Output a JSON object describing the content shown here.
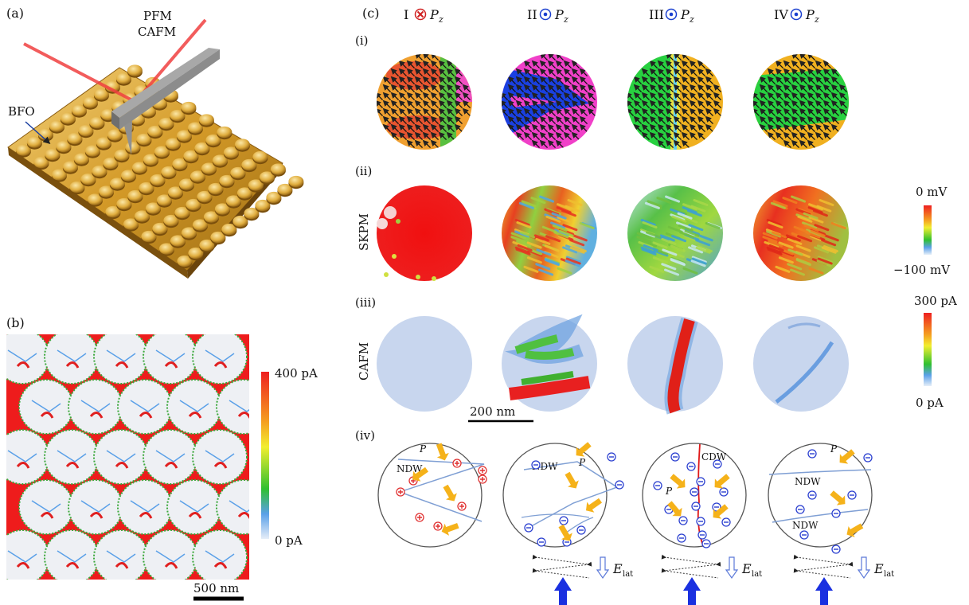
{
  "panels": {
    "a": "(a)",
    "b": "(b)",
    "c": "(c)"
  },
  "panel_a": {
    "probe_label_1": "PFM",
    "probe_label_2": "CAFM",
    "material_label": "BFO"
  },
  "panel_b": {
    "colorbar_max": "400 pA",
    "colorbar_min": "0 pA",
    "scalebar": "500 nm"
  },
  "panel_c": {
    "columns": [
      {
        "numeral": "I",
        "symbol": "into-page",
        "pol": "P",
        "pol_sub": "z"
      },
      {
        "numeral": "II",
        "symbol": "out-of-page",
        "pol": "P",
        "pol_sub": "z"
      },
      {
        "numeral": "III",
        "symbol": "out-of-page",
        "pol": "P",
        "pol_sub": "z"
      },
      {
        "numeral": "IV",
        "symbol": "out-of-page",
        "pol": "P",
        "pol_sub": "z"
      }
    ],
    "rows": [
      "(i)",
      "(ii)",
      "(iii)",
      "(iv)"
    ],
    "row_labels": {
      "ii": "SKPM",
      "iii": "CAFM"
    },
    "skpm_colorbar": {
      "max": "0 mV",
      "min": "−100 mV"
    },
    "cafm_colorbar": {
      "max": "300 pA",
      "min": "0 pA"
    },
    "scalebar": "200 nm",
    "schematics": {
      "I": {
        "labels": [
          "P",
          "NDW"
        ]
      },
      "II": {
        "labels": [
          "P",
          "NDW"
        ]
      },
      "III": {
        "labels": [
          "CDW",
          "P"
        ]
      },
      "IV": {
        "labels": [
          "P",
          "NDW",
          "NDW"
        ]
      }
    },
    "field_label": "E",
    "field_sub": "lat"
  },
  "colors": {
    "orange_arrow": "#f5b21a",
    "domain_wall": "#7f9fd4",
    "positive_charge": "#e03030",
    "negative_charge": "#2a3fd0",
    "conductive_wall": "#e01818",
    "substrate_red": "#ee1c1c",
    "gold": "#d4a020"
  }
}
